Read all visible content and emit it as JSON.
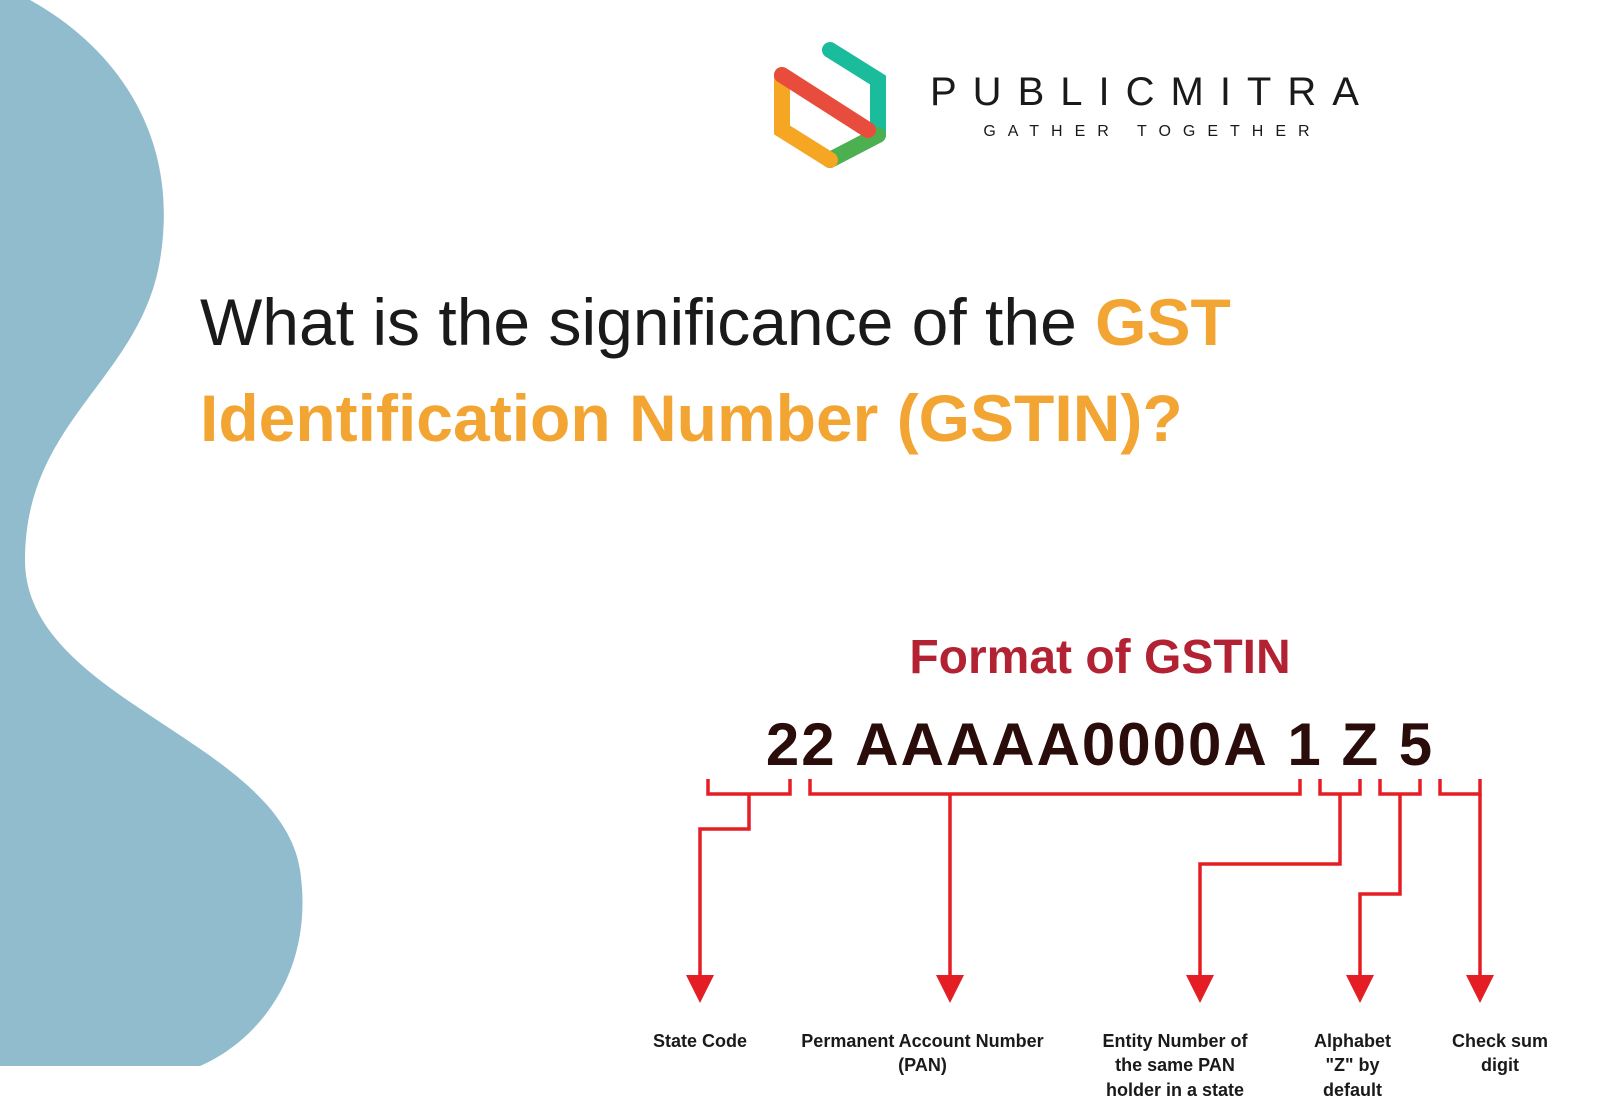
{
  "colors": {
    "wave": "#90bcce",
    "accent_orange": "#f2a532",
    "title_red": "#b32233",
    "gstin_text": "#2a0c0a",
    "arrow_red": "#e31e24",
    "logo_orange": "#f5a623",
    "logo_teal": "#1abc9c",
    "logo_red": "#e74c3c",
    "logo_green": "#4caf50",
    "text_dark": "#1a1a1a"
  },
  "logo": {
    "name": "PUBLICMITRA",
    "tagline": "GATHER TOGETHER"
  },
  "heading": {
    "part1": "What is the significance of the ",
    "highlight": "GST Identification Number (GSTIN)?"
  },
  "diagram": {
    "title": "Format of GSTIN",
    "gstin": {
      "seg1": "22",
      "seg2": "AAAAA0000A",
      "seg3": "1",
      "seg4": "Z",
      "seg5": "5"
    },
    "labels": {
      "l1": "State Code",
      "l2": "Permanent Account Number\n(PAN)",
      "l3": "Entity Number of\nthe same PAN\nholder in a state",
      "l4": "Alphabet\n\"Z\" by\ndefault",
      "l5": "Check sum\ndigit"
    }
  }
}
